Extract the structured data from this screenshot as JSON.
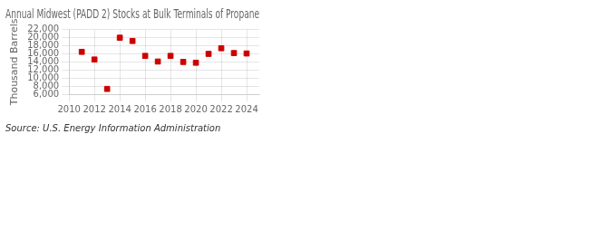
{
  "chart_data": {
    "type": "scatter",
    "title": "Annual Midwest (PADD 2) Stocks at Bulk Terminals of Propane",
    "ylabel": "Thousand Barrels",
    "annotations": [
      "Source: U.S. Energy Information Administration"
    ],
    "x": [
      2011,
      2012,
      2013,
      2014,
      2015,
      2016,
      2017,
      2018,
      2019,
      2020,
      2021,
      2022,
      2023,
      2024
    ],
    "values": [
      16500,
      14600,
      7300,
      20000,
      19200,
      15500,
      14100,
      15500,
      14000,
      13800,
      16000,
      17400,
      16200,
      16100
    ],
    "color": "#CC0000",
    "marker": "square",
    "xlim": [
      2010,
      2025
    ],
    "xticks": [
      2010,
      2012,
      2014,
      2016,
      2018,
      2020,
      2022,
      2024
    ],
    "ylim": [
      6000,
      22000
    ],
    "yticks": [
      {
        "value": 6000,
        "label": "6,000"
      },
      {
        "value": 8000,
        "label": "8,000"
      },
      {
        "value": 10000,
        "label": "10,000"
      },
      {
        "value": 12000,
        "label": "12,000"
      },
      {
        "value": 14000,
        "label": "14,000"
      },
      {
        "value": 16000,
        "label": "16,000"
      },
      {
        "value": 18000,
        "label": "18,000"
      },
      {
        "value": 20000,
        "label": "20,000"
      },
      {
        "value": 22000,
        "label": "22,000"
      }
    ],
    "grid": true
  }
}
